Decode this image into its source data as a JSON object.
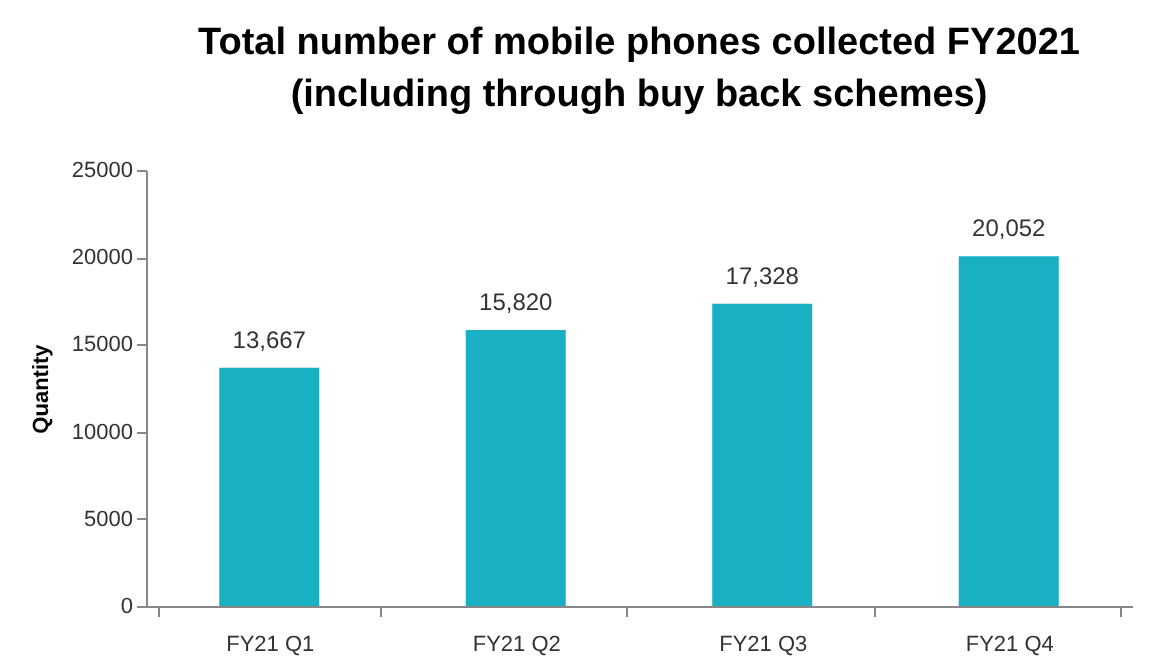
{
  "chart_data": {
    "type": "bar",
    "title": "Total number of mobile phones collected FY2021\n(including through buy back schemes)",
    "ylabel": "Quantity",
    "categories": [
      "FY21 Q1",
      "FY21 Q2",
      "FY21 Q3",
      "FY21 Q4"
    ],
    "values": [
      13667,
      15820,
      17328,
      20052
    ],
    "value_labels": [
      "13,667",
      "15,820",
      "17,328",
      "20,052"
    ],
    "color": "#1ab0c4",
    "ylim": [
      0,
      25000
    ],
    "yticks": [
      0,
      5000,
      10000,
      15000,
      20000,
      25000
    ],
    "grid": false
  }
}
